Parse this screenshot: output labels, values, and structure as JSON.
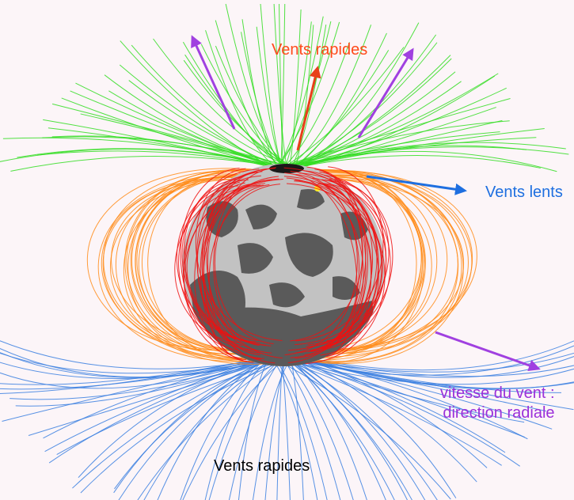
{
  "labels": {
    "fast_winds_top": "Vents rapides",
    "slow_winds": "Vents lents",
    "fast_winds_bottom": "Vents rapides",
    "wind_speed_line1": "vitesse du vent :",
    "wind_speed_line2": "direction radiale"
  },
  "colors": {
    "background": "#fcf5f8",
    "fast_top_label": "#ff4a1a",
    "slow_label": "#1e6fe0",
    "bottom_label": "#000000",
    "radial_label": "#9b30d9",
    "north_field_lines": "#33dd22",
    "south_field_lines": "#3a7fe0",
    "closed_loops_outer": "#ff8c1a",
    "closed_loops_inner": "#ee1111",
    "sun_light": "#c2c2c2",
    "sun_dark": "#5a5a5a",
    "arrow_radial": "#a040e0",
    "arrow_fast": "#e8401a",
    "arrow_slow": "#1e6fe0"
  },
  "icons": [
    "radial-arrow-icon",
    "fast-wind-arrow-icon",
    "slow-wind-arrow-icon"
  ]
}
